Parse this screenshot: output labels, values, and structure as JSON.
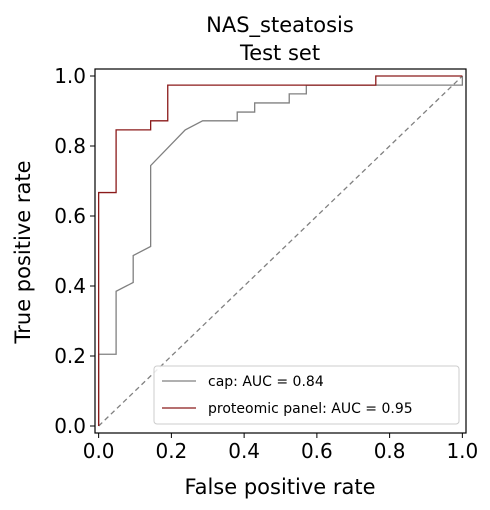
{
  "chart_data": {
    "type": "line",
    "title_lines": [
      "NAS_steatosis",
      "Test set"
    ],
    "xlabel": "False positive rate",
    "ylabel": "True positive rate",
    "xlim": [
      -0.01,
      1.01
    ],
    "ylim": [
      -0.02,
      1.02
    ],
    "xticks": [
      0.0,
      0.2,
      0.4,
      0.6,
      0.8,
      1.0
    ],
    "xtick_labels": [
      "0.0",
      "0.2",
      "0.4",
      "0.6",
      "0.8",
      "1.0"
    ],
    "yticks": [
      0.0,
      0.2,
      0.4,
      0.6,
      0.8,
      1.0
    ],
    "ytick_labels": [
      "0.0",
      "0.2",
      "0.4",
      "0.6",
      "0.8",
      "1.0"
    ],
    "grid": false,
    "legend_position": "lower-right",
    "series": [
      {
        "name": "cap: AUC = 0.84",
        "color": "#808080",
        "x": [
          0.0,
          0.0,
          0.048,
          0.048,
          0.095,
          0.095,
          0.143,
          0.143,
          0.143,
          0.238,
          0.238,
          0.286,
          0.286,
          0.381,
          0.381,
          0.429,
          0.429,
          0.524,
          0.524,
          0.571,
          0.571,
          1.0,
          1.0
        ],
        "y": [
          0.0,
          0.205,
          0.205,
          0.385,
          0.41,
          0.487,
          0.513,
          0.744,
          0.744,
          0.846,
          0.846,
          0.872,
          0.872,
          0.872,
          0.897,
          0.897,
          0.923,
          0.923,
          0.949,
          0.949,
          0.974,
          0.974,
          1.0
        ]
      },
      {
        "name": "proteomic panel: AUC = 0.95",
        "color": "#8b1a1a",
        "x": [
          0.0,
          0.0,
          0.048,
          0.048,
          0.143,
          0.143,
          0.19,
          0.19,
          0.762,
          0.762,
          1.0
        ],
        "y": [
          0.0,
          0.667,
          0.667,
          0.846,
          0.846,
          0.872,
          0.872,
          0.974,
          0.974,
          1.0,
          1.0
        ]
      }
    ],
    "reference_line": {
      "x": [
        0.0,
        1.0
      ],
      "y": [
        0.0,
        1.0
      ],
      "color": "#808080",
      "style": "dashed"
    }
  }
}
